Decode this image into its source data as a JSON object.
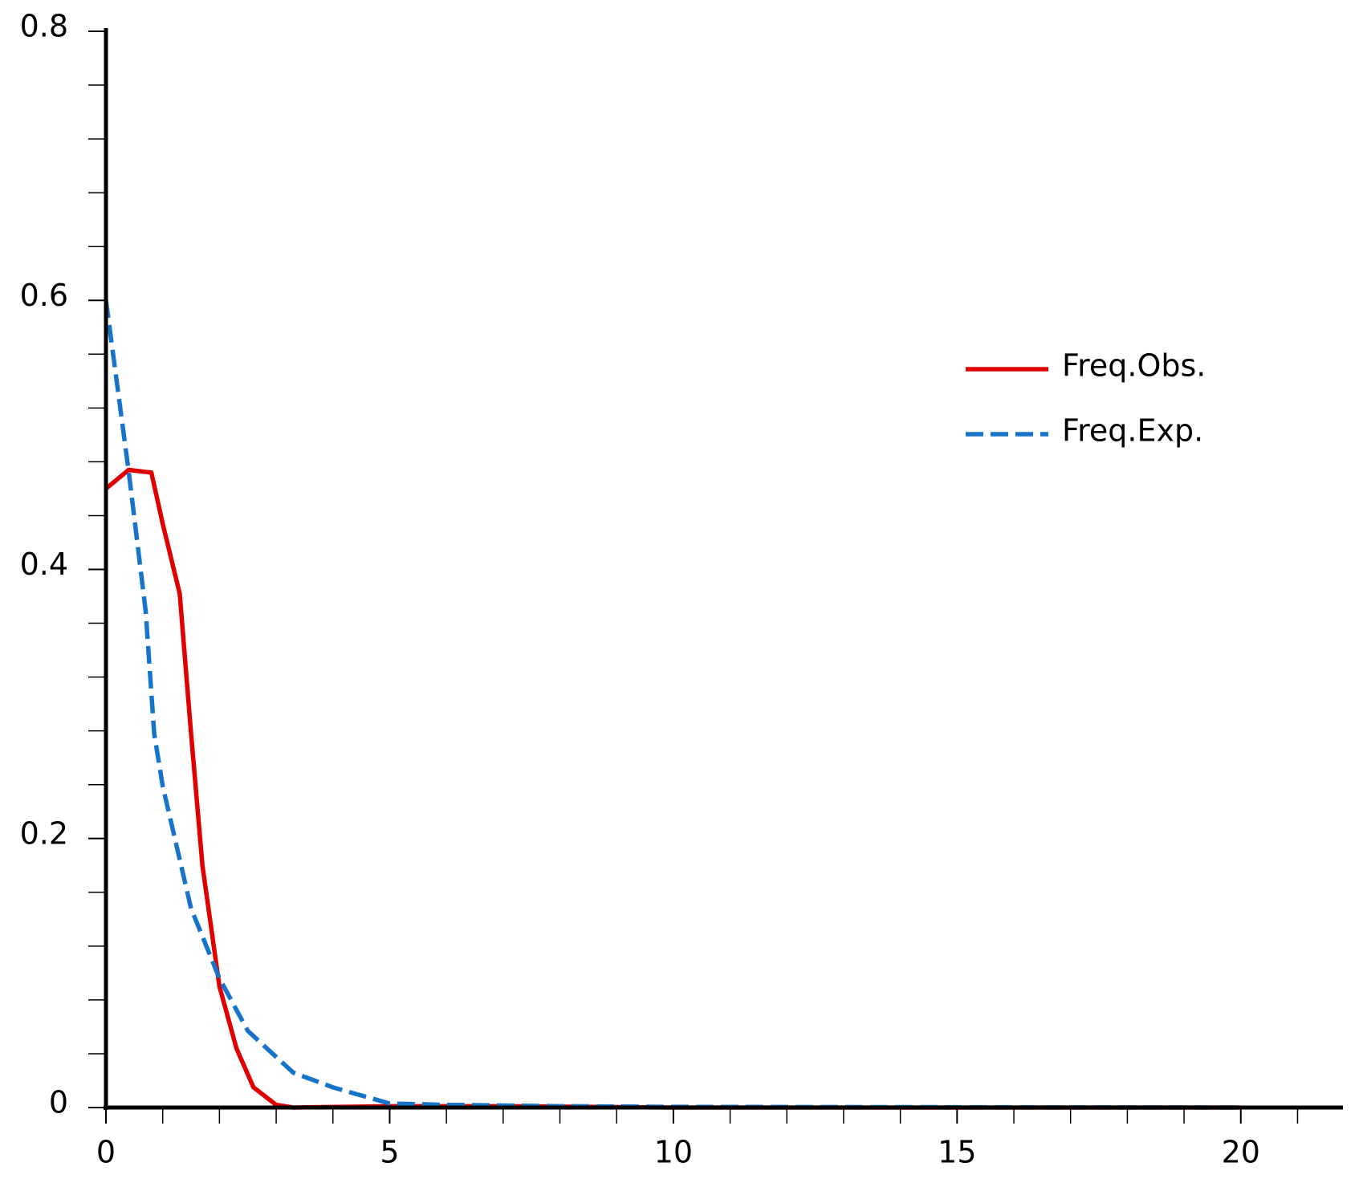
{
  "chart_data": {
    "type": "line",
    "xlim": [
      0,
      21.8
    ],
    "ylim": [
      0,
      0.8
    ],
    "xticks": [
      0,
      5,
      10,
      15,
      20
    ],
    "yticks": [
      0,
      0.2,
      0.4,
      0.6,
      0.8
    ],
    "x_minor_ticks": [
      1,
      2,
      3,
      4,
      6,
      7,
      8,
      9,
      11,
      12,
      13,
      14,
      16,
      17,
      18,
      19,
      21
    ],
    "y_minor_ticks": [
      0.04,
      0.08,
      0.12,
      0.16,
      0.24,
      0.28,
      0.32,
      0.36,
      0.44,
      0.48,
      0.52,
      0.56,
      0.64,
      0.68,
      0.72,
      0.76
    ],
    "legend": "upper right",
    "series": [
      {
        "name": "Freq.Obs.",
        "color": "#e00000",
        "style": "solid",
        "x": [
          0,
          0.4,
          0.8,
          1.0,
          1.3,
          1.5,
          1.7,
          2.0,
          2.3,
          2.6,
          3.0,
          3.3,
          5,
          7,
          10,
          20
        ],
        "values": [
          0.46,
          0.474,
          0.472,
          0.434,
          0.382,
          0.278,
          0.18,
          0.09,
          0.044,
          0.015,
          0.002,
          0,
          0.001,
          0.001,
          0,
          0
        ]
      },
      {
        "name": "Freq.Exp.",
        "color": "#1874c8",
        "style": "dashed",
        "x": [
          0,
          0.4,
          0.7,
          0.85,
          1.0,
          1.5,
          2.0,
          2.5,
          3.3,
          4.0,
          5.0,
          6.0,
          8.0,
          10.0,
          20.0
        ],
        "values": [
          0.6,
          0.473,
          0.369,
          0.278,
          0.239,
          0.148,
          0.096,
          0.057,
          0.026,
          0.015,
          0.003,
          0.002,
          0.001,
          0.0005,
          0
        ]
      }
    ]
  }
}
